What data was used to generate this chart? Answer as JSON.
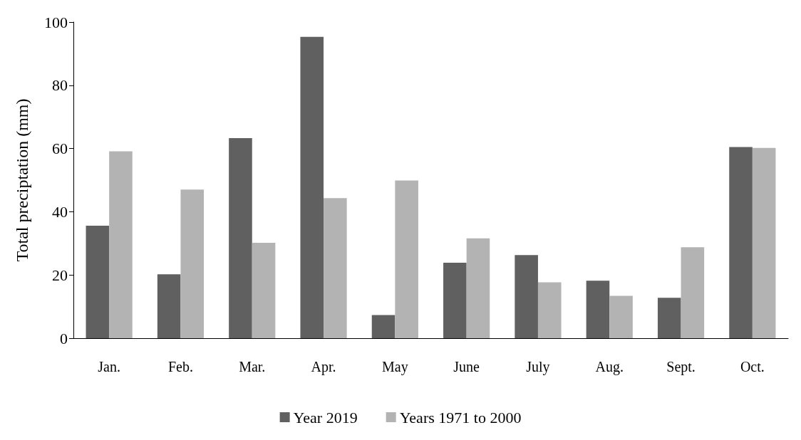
{
  "chart_data": {
    "type": "bar",
    "ylabel": "Total preciptation (mm)",
    "categories": [
      "Jan.",
      "Feb.",
      "Mar.",
      "Apr.",
      "May",
      "June",
      "July",
      "Aug.",
      "Sept.",
      "Oct."
    ],
    "series": [
      {
        "name": "Year 2019",
        "color": "#606060",
        "values": [
          35.6,
          20.2,
          63.3,
          95.3,
          7.3,
          23.9,
          26.3,
          18.2,
          12.8,
          60.5
        ]
      },
      {
        "name": "Years 1971 to 2000",
        "color": "#b3b3b3",
        "values": [
          59.1,
          47.0,
          30.2,
          44.3,
          49.9,
          31.6,
          17.7,
          13.4,
          28.8,
          60.2
        ]
      }
    ],
    "ylim": [
      0,
      100
    ],
    "yticks": [
      0,
      20,
      40,
      60,
      80,
      100
    ],
    "grid": false,
    "legend": "bottom"
  }
}
